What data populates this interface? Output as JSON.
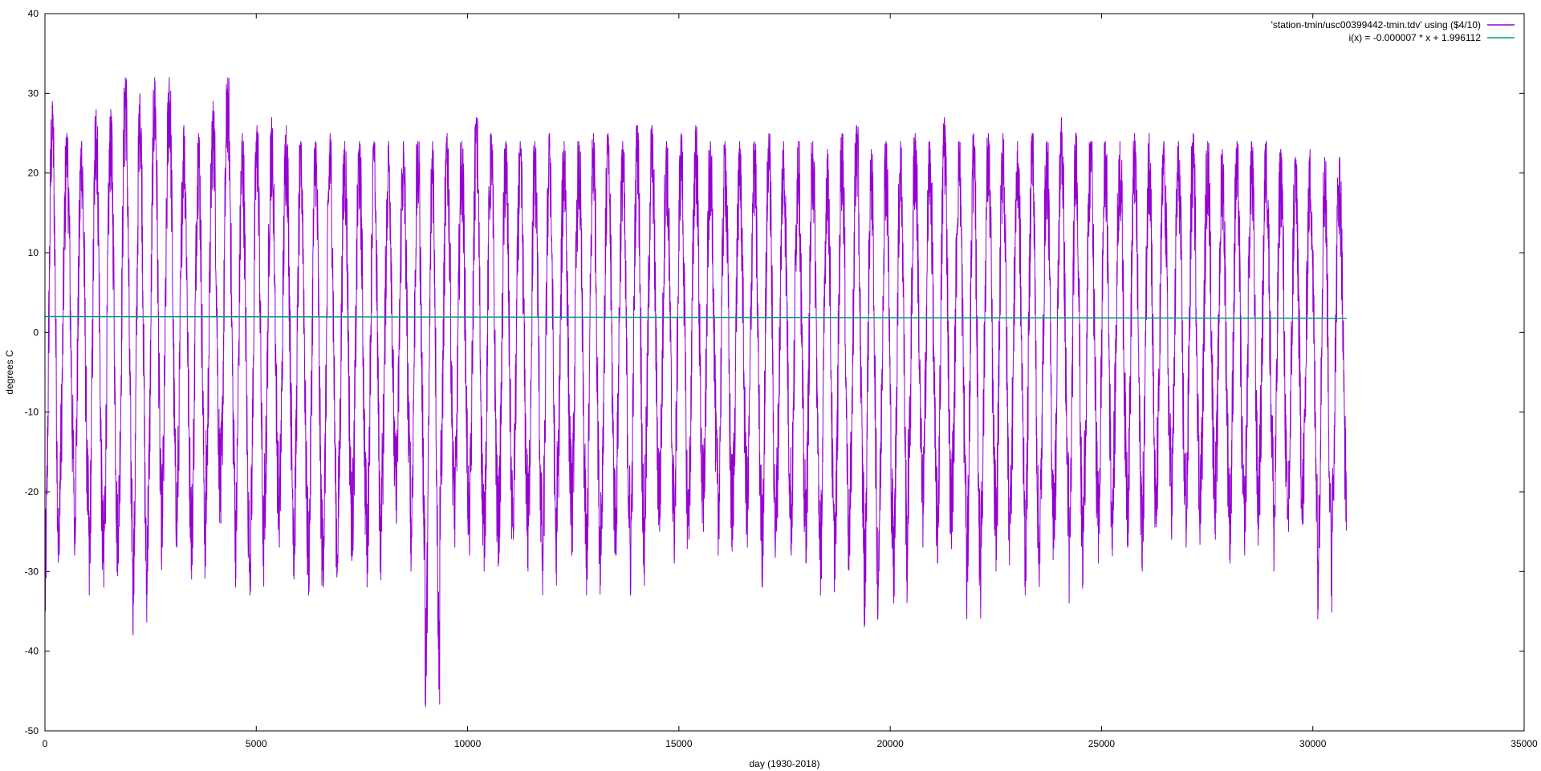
{
  "chart_data": {
    "type": "line",
    "title": "",
    "xlabel": "day (1930-2018)",
    "ylabel": "degrees C",
    "xlim": [
      0,
      35000
    ],
    "ylim": [
      -50,
      40
    ],
    "x_ticks": [
      0,
      5000,
      10000,
      15000,
      20000,
      25000,
      30000,
      35000
    ],
    "y_ticks": [
      -50,
      -40,
      -30,
      -20,
      -10,
      0,
      10,
      20,
      30,
      40
    ],
    "grid": false,
    "legend_position": "top-right",
    "series": [
      {
        "name": "'station-tmin/usc00399442-tmin.tdv' using ($4/10)",
        "color": "#9400d3",
        "style": "seasonal daily minimum temperature, approx. 89 yearly cycles",
        "x_range": [
          0,
          30800
        ],
        "approx_annual_peak_max": [
          29,
          25,
          24,
          28,
          28,
          32,
          30,
          32,
          32,
          26,
          25,
          29,
          32,
          25,
          26,
          27,
          26,
          24,
          24,
          25,
          24,
          24,
          24,
          24,
          24,
          24,
          24,
          25,
          24,
          27,
          25,
          24,
          24,
          24,
          25,
          24,
          24,
          25,
          25,
          24,
          26,
          26,
          24,
          25,
          26,
          24,
          24,
          24,
          24,
          25,
          24,
          24,
          24,
          23,
          25,
          26,
          23,
          24,
          24,
          25,
          24,
          27,
          24,
          25,
          25,
          25,
          24,
          25,
          24,
          27,
          25,
          24,
          24,
          24,
          25,
          25,
          24,
          24,
          25,
          24,
          23,
          24,
          24,
          24,
          23,
          22,
          23,
          22,
          22
        ],
        "approx_annual_trough_min": [
          -35,
          -23,
          -28,
          -33,
          -32,
          -29,
          -38,
          -30,
          -27,
          -27,
          -31,
          -24,
          -24,
          -32,
          -33,
          -26,
          -27,
          -31,
          -33,
          -32,
          -29,
          -28,
          -32,
          -25,
          -24,
          -30,
          -47,
          -26,
          -27,
          -28,
          -30,
          -29,
          -26,
          -30,
          -33,
          -25,
          -28,
          -33,
          -28,
          -28,
          -33,
          -25,
          -25,
          -29,
          -26,
          -25,
          -28,
          -26,
          -27,
          -32,
          -25,
          -28,
          -29,
          -33,
          -31,
          -28,
          -37,
          -30,
          -34,
          -24,
          -27,
          -29,
          -25,
          -36,
          -27,
          -30,
          -24,
          -33,
          -29,
          -26,
          -34,
          -25,
          -29,
          -24,
          -27,
          -30,
          -23,
          -26,
          -27,
          -24,
          -26,
          -29,
          -28,
          -23,
          -30,
          -25,
          -24,
          -36,
          -25
        ]
      },
      {
        "name": "i(x) = -0.000007 * x + 1.996112",
        "color": "#009e73",
        "type": "linear",
        "slope": -7e-06,
        "intercept": 1.996112,
        "x_range": [
          0,
          30800
        ]
      }
    ]
  }
}
